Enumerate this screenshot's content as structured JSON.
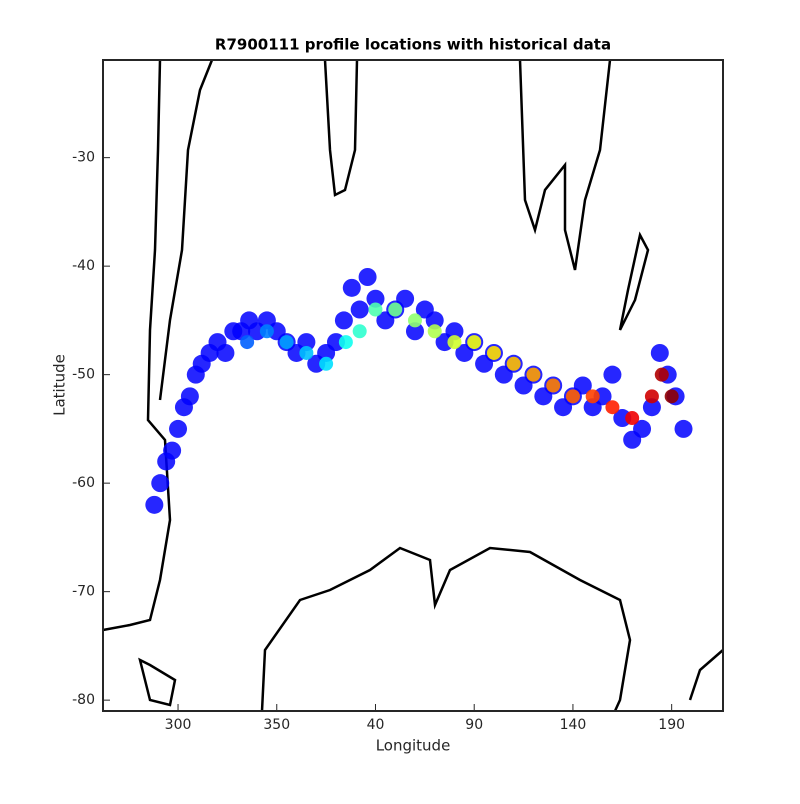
{
  "chart_data": {
    "type": "scatter",
    "title": "R7900111 profile locations with historical data",
    "x_label": "Longitude",
    "y_label": "Latitude",
    "xlim": [
      262,
      576
    ],
    "xticks": [
      300,
      350,
      {
        "value": 400,
        "label": "40"
      },
      {
        "value": 450,
        "label": "90"
      },
      {
        "value": 500,
        "label": "140"
      },
      {
        "value": 550,
        "label": "190"
      }
    ],
    "ylim": [
      -81,
      -21
    ],
    "yticks": [
      -30,
      -40,
      -50,
      -60,
      -70,
      -80
    ],
    "series": [
      {
        "color": "#0000ff",
        "x": [
          288,
          291,
          294,
          297,
          300,
          303,
          306,
          309,
          312,
          316,
          320,
          324,
          328,
          332,
          336,
          340,
          345,
          350,
          355,
          360,
          365,
          370,
          375,
          380,
          384,
          388,
          392,
          396,
          400,
          405,
          410,
          415,
          420,
          425,
          430,
          435,
          440,
          445,
          450,
          455,
          460,
          465,
          470,
          475,
          480,
          485,
          490,
          495,
          500,
          505,
          510,
          515,
          520,
          525,
          530,
          535,
          540,
          544,
          548,
          552,
          556
        ],
        "y": [
          -62,
          -60,
          -58,
          -57,
          -55,
          -53,
          -52,
          -50,
          -49,
          -48,
          -47,
          -48,
          -46,
          -46,
          -45,
          -46,
          -45,
          -46,
          -47,
          -48,
          -47,
          -49,
          -48,
          -47,
          -45,
          -42,
          -44,
          -41,
          -43,
          -45,
          -44,
          -43,
          -46,
          -44,
          -45,
          -47,
          -46,
          -48,
          -47,
          -49,
          -48,
          -50,
          -49,
          -51,
          -50,
          -52,
          -51,
          -53,
          -52,
          -51,
          -53,
          -52,
          -50,
          -54,
          -56,
          -55,
          -53,
          -48,
          -50,
          -52,
          -55
        ]
      },
      {
        "colors": [
          "#0060ff",
          "#0080ff",
          "#00a0ff",
          "#00c0ff",
          "#00e0ff",
          "#10ffef",
          "#30ffcf",
          "#50ffaf",
          "#70ff8f",
          "#90ff6f",
          "#b0ff4f",
          "#d0ff2f",
          "#f0ff0f",
          "#ffe000",
          "#ffc000",
          "#ffa000",
          "#ff8000",
          "#ff6000",
          "#ff4000",
          "#ff2000",
          "#f00000",
          "#d00000",
          "#b00000",
          "#900000"
        ],
        "x": [
          335,
          345,
          355,
          365,
          375,
          385,
          392,
          400,
          410,
          420,
          430,
          440,
          450,
          460,
          470,
          480,
          490,
          500,
          510,
          520,
          530,
          540,
          545,
          550
        ],
        "y": [
          -47,
          -46,
          -47,
          -48,
          -49,
          -47,
          -46,
          -44,
          -44,
          -45,
          -46,
          -47,
          -47,
          -48,
          -49,
          -50,
          -51,
          -52,
          -52,
          -53,
          -54,
          -52,
          -50,
          -52
        ]
      }
    ]
  }
}
